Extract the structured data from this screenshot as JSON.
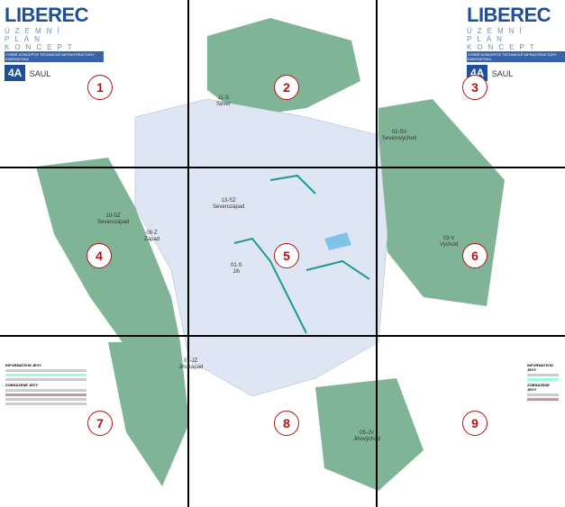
{
  "logo": {
    "title": "LIBEREC",
    "line1": "ÚZEMNÍ PLÁN",
    "line2": "KONCEPT",
    "line3": "VYBRÉ KONCEPCE TECHNICKÉ INFRASTRUKTURY - ENERGETIKA",
    "badge": "4A",
    "partner": "SAUL"
  },
  "districts": [
    {
      "code": "11-S",
      "name": "Sever"
    },
    {
      "code": "02-SV",
      "name": "Severovýchod"
    },
    {
      "code": "10-SZ",
      "name": "Severozápad"
    },
    {
      "code": "09-Z",
      "name": "Západ"
    },
    {
      "code": "13-SZ",
      "name": "Severozápad"
    },
    {
      "code": "03-V",
      "name": "Východ"
    },
    {
      "code": "07-JZ",
      "name": "Jihozápad"
    },
    {
      "code": "05-JV",
      "name": "Jihovýchod"
    },
    {
      "code": "01-S",
      "name": "Jih"
    }
  ],
  "tiles": [
    "1",
    "2",
    "3",
    "4",
    "5",
    "6",
    "7",
    "8",
    "9"
  ],
  "legend": {
    "heading1": "INFORMATIVNÍ JEVY",
    "heading2": "ZOBRAZENÉ JEVY"
  },
  "colors": {
    "forest": "#7fb596",
    "urban": "#dfe6f3",
    "grid": "#000000",
    "marker": "#b31313",
    "teal": "#1e9a96"
  }
}
